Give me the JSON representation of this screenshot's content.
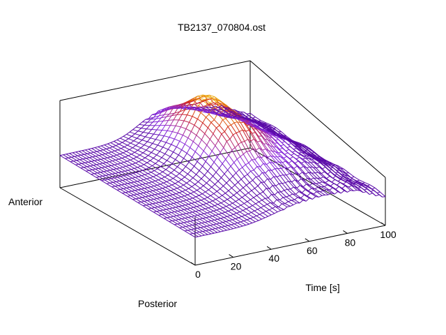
{
  "chart_data": {
    "type": "surface-3d",
    "title": "TB2137_070804.ost",
    "xlabel": "Time [s]",
    "x_ticks": [
      "0",
      "20",
      "40",
      "60",
      "80",
      "100"
    ],
    "x_tick_values": [
      0,
      20,
      40,
      60,
      80,
      100
    ],
    "xlim": [
      0,
      100
    ],
    "ylabels": {
      "near": "Posterior",
      "far": "Anterior"
    },
    "zlabel": "",
    "grid": false,
    "colormap": [
      "#5a0aa8",
      "#8a2be2",
      "#b0308a",
      "#d0201a",
      "#e88a10",
      "#f5e030"
    ],
    "wireframe": true,
    "peak": {
      "time": 52,
      "position": "mid"
    }
  }
}
